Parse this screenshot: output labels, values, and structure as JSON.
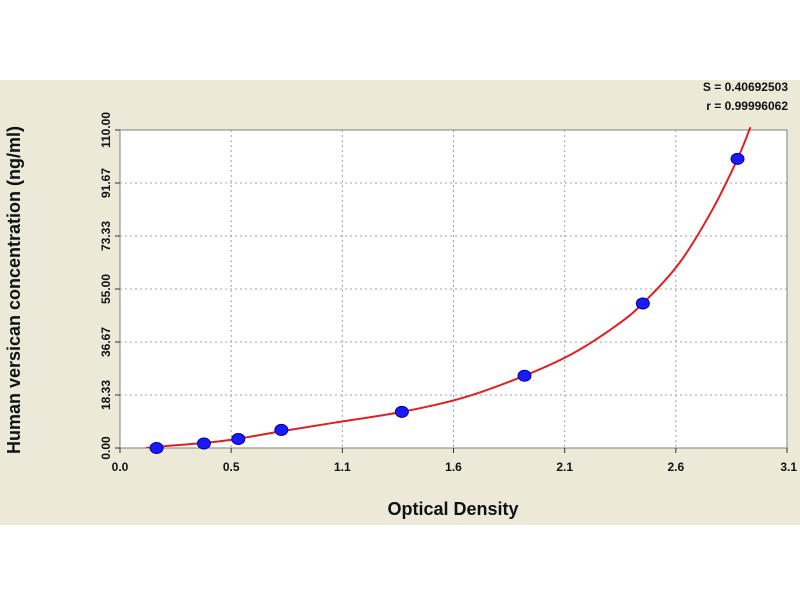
{
  "chart_data": {
    "type": "scatter",
    "xlabel": "Optical Density",
    "ylabel": "Human versican concentration (ng/ml)",
    "xlim": [
      0.0,
      3.1
    ],
    "ylim": [
      0.0,
      110.0
    ],
    "x_ticks": [
      "0.0",
      "0.5",
      "1.1",
      "1.6",
      "2.1",
      "2.6",
      "3.1"
    ],
    "y_ticks": [
      "0.00",
      "18.33",
      "36.67",
      "55.00",
      "73.33",
      "91.67",
      "110.00"
    ],
    "grid": true,
    "stats": {
      "s_label": "S = 0.40692503",
      "r_label": "r = 0.99996062"
    },
    "points": [
      {
        "x": 0.17,
        "y": 0.0
      },
      {
        "x": 0.39,
        "y": 1.56
      },
      {
        "x": 0.55,
        "y": 3.13
      },
      {
        "x": 0.75,
        "y": 6.25
      },
      {
        "x": 1.31,
        "y": 12.5
      },
      {
        "x": 1.88,
        "y": 25.0
      },
      {
        "x": 2.43,
        "y": 50.0
      },
      {
        "x": 2.87,
        "y": 100.0
      }
    ],
    "fit_curve": [
      [
        0.12,
        0.0
      ],
      [
        0.25,
        0.9
      ],
      [
        0.4,
        1.8
      ],
      [
        0.55,
        3.2
      ],
      [
        0.75,
        5.8
      ],
      [
        1.0,
        8.8
      ],
      [
        1.31,
        12.5
      ],
      [
        1.6,
        17.5
      ],
      [
        1.88,
        25.0
      ],
      [
        2.1,
        32.5
      ],
      [
        2.3,
        42.0
      ],
      [
        2.43,
        50.0
      ],
      [
        2.6,
        64.0
      ],
      [
        2.75,
        82.0
      ],
      [
        2.87,
        100.0
      ],
      [
        2.93,
        111.0
      ]
    ],
    "point_color": "#1a1aff",
    "curve_color": "#e02020"
  }
}
